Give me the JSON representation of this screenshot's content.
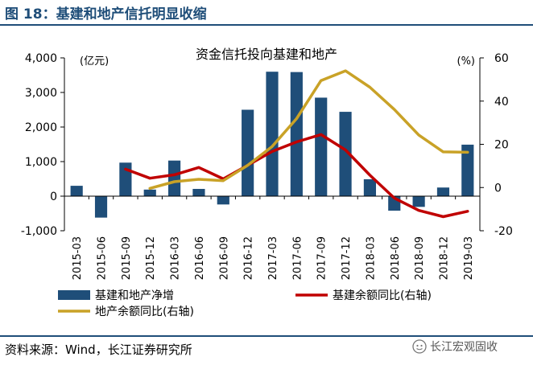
{
  "figure": {
    "title": "图 18：基建和地产信托明显收缩",
    "source": "资料来源：Wind，长江证券研究所",
    "watermark": "长江宏观固收"
  },
  "chart_data": {
    "type": "bar",
    "title": "资金信托投向基建和地产",
    "categories": [
      "2015-03",
      "2015-06",
      "2015-09",
      "2015-12",
      "2016-03",
      "2016-06",
      "2016-09",
      "2016-12",
      "2017-03",
      "2017-06",
      "2017-09",
      "2017-12",
      "2018-03",
      "2018-06",
      "2018-09",
      "2018-12",
      "2019-03"
    ],
    "left_axis": {
      "unit_label": "(亿元)",
      "ylim": [
        -1000,
        4000
      ],
      "ticks": [
        -1000,
        0,
        1000,
        2000,
        3000,
        4000
      ],
      "tick_labels": [
        "-1,000",
        "0",
        "1,000",
        "2,000",
        "3,000",
        "4,000"
      ]
    },
    "right_axis": {
      "unit_label": "(%)",
      "ylim": [
        -20,
        60
      ],
      "ticks": [
        -20,
        0,
        20,
        40,
        60
      ],
      "tick_labels": [
        "-20",
        "0",
        "20",
        "40",
        "60"
      ]
    },
    "series": [
      {
        "name": "基建和地产净增",
        "type": "bar",
        "axis": "left",
        "color": "#1f4e79",
        "values": [
          300,
          -620,
          970,
          190,
          1030,
          210,
          -240,
          2500,
          3600,
          3590,
          2850,
          2440,
          490,
          -420,
          -310,
          250,
          1490
        ]
      },
      {
        "name": "基建余额同比(右轴)",
        "type": "line",
        "axis": "right",
        "color": "#c00000",
        "values": [
          null,
          null,
          8.5,
          4.3,
          5.9,
          9.3,
          4.0,
          10.3,
          16.7,
          21.1,
          24.5,
          17.4,
          5.7,
          -4.9,
          -10.6,
          -13.5,
          -11.0
        ]
      },
      {
        "name": "地产余额同比(右轴)",
        "type": "line",
        "axis": "right",
        "color": "#c9a227",
        "values": [
          null,
          null,
          null,
          -0.4,
          2.7,
          3.8,
          3.2,
          10.3,
          19.0,
          31.9,
          49.5,
          54.0,
          46.4,
          36.1,
          24.3,
          16.5,
          16.3
        ]
      }
    ],
    "legend": {
      "items": [
        "基建和地产净增",
        "基建余额同比(右轴)",
        "地产余额同比(右轴)"
      ],
      "placement": "bottom"
    }
  }
}
